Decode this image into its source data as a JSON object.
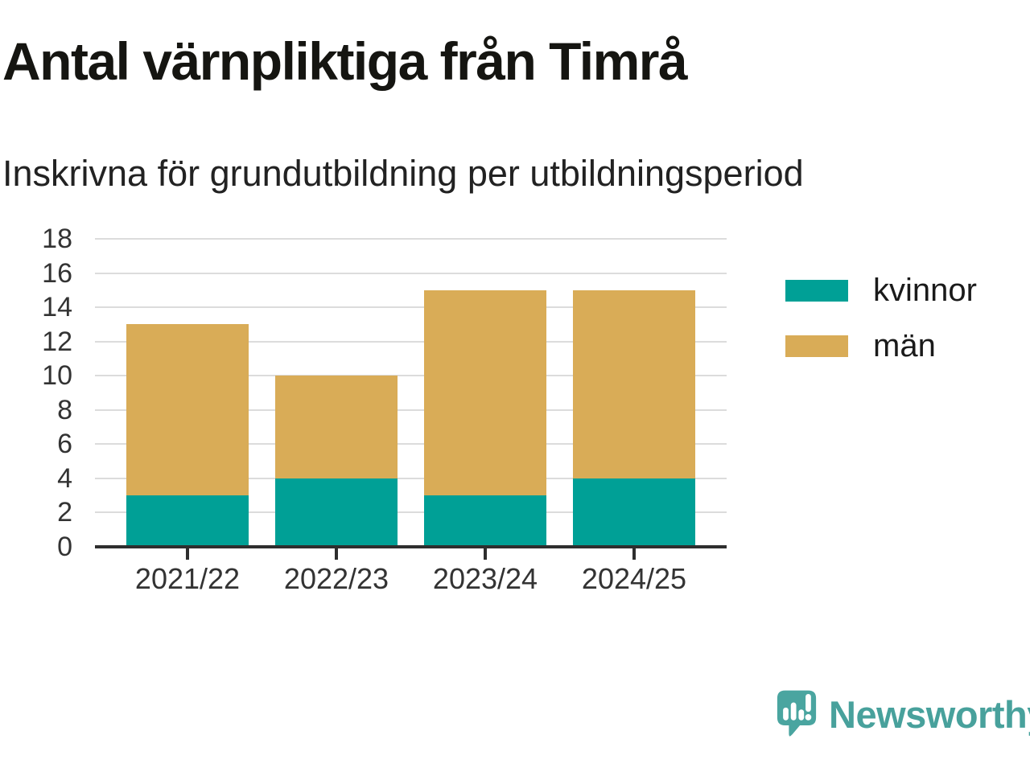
{
  "header": {
    "title": "Antal värnpliktiga från Timrå",
    "subtitle": "Inskrivna för grundutbildning per utbildningsperiod"
  },
  "chart_data": {
    "type": "bar",
    "stacked": true,
    "title": "Antal värnpliktiga från Timrå",
    "subtitle": "Inskrivna för grundutbildning per utbildningsperiod",
    "categories": [
      "2021/22",
      "2022/23",
      "2023/24",
      "2024/25"
    ],
    "series": [
      {
        "name": "kvinnor",
        "color": "#00a096",
        "values": [
          3,
          4,
          3,
          4
        ]
      },
      {
        "name": "män",
        "color": "#d9ac57",
        "values": [
          10,
          6,
          12,
          11
        ]
      }
    ],
    "stack_totals": [
      13,
      10,
      15,
      15
    ],
    "xlabel": "",
    "ylabel": "",
    "ylim": [
      0,
      18
    ],
    "ytick_step": 2,
    "grid": true,
    "legend_position": "right"
  },
  "branding": {
    "logo_text": "Newsworthy",
    "logo_icon": "bar-chart-speech-bubble-icon",
    "logo_text_color": "#48a19c",
    "logo_bubble_color": "#4aa5a0"
  },
  "colors": {
    "axis": "#2e2e2e",
    "gridline": "#dcdcdc",
    "tick_text": "#333333",
    "title_text": "#151511"
  }
}
